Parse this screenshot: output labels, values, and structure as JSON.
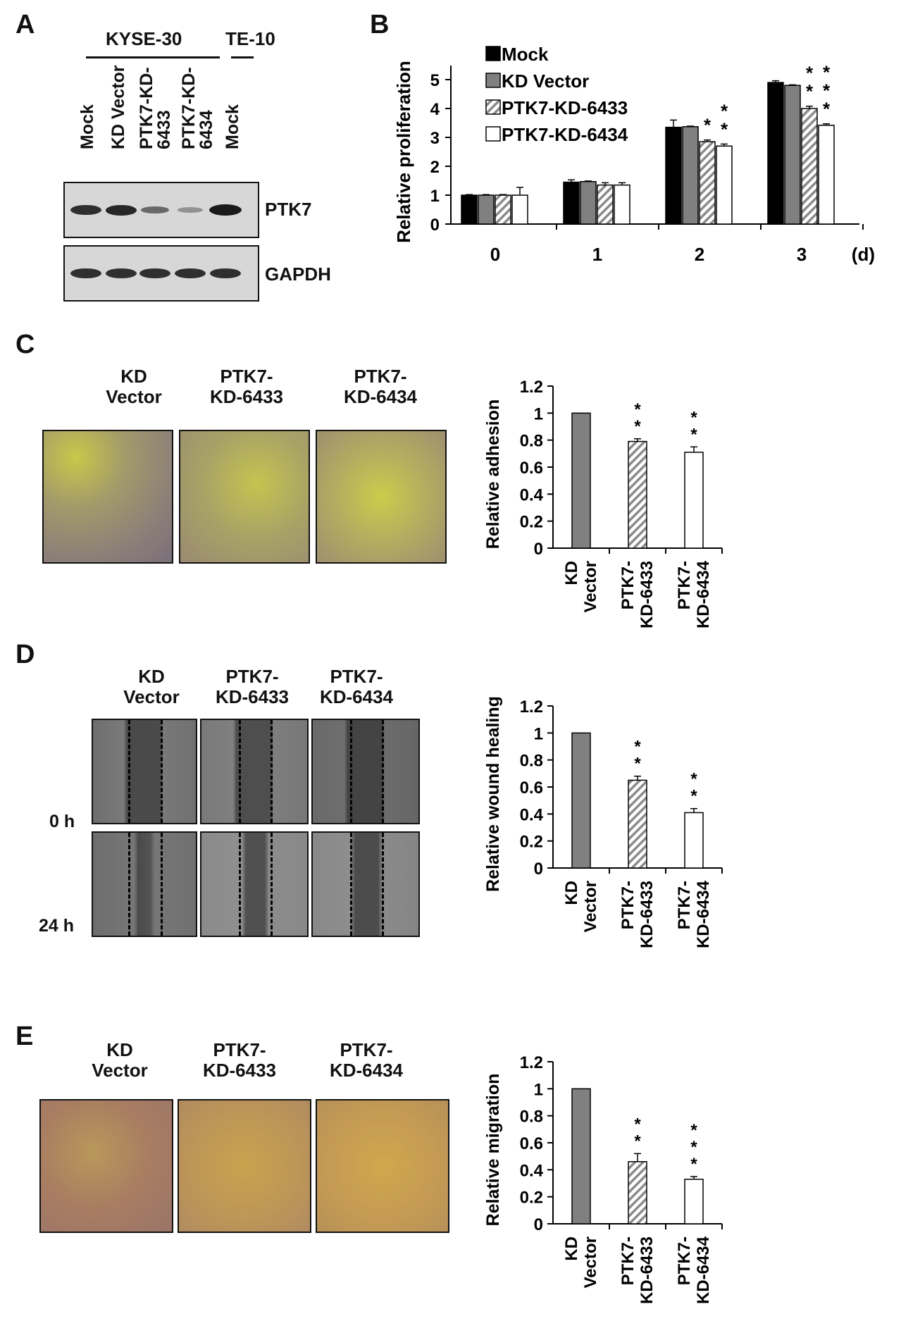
{
  "panels": [
    "A",
    "B",
    "C",
    "D",
    "E"
  ],
  "westernBlot": {
    "group1": "KYSE-30",
    "group2": "TE-10",
    "lanes": [
      [
        "Mock"
      ],
      [
        "KD Vector"
      ],
      [
        "PTK7-KD-",
        "6433"
      ],
      [
        "PTK7-KD-",
        "6434"
      ],
      [
        "Mock"
      ]
    ],
    "proteins": [
      "PTK7",
      "GAPDH"
    ],
    "ptk7_intensity": [
      0.85,
      0.9,
      0.45,
      0.15,
      1.0
    ],
    "gapdh_intensity": [
      0.85,
      0.85,
      0.85,
      0.85,
      0.85
    ]
  },
  "conditions": {
    "kd_vector": [
      "KD",
      "Vector"
    ],
    "kd_6433": [
      "PTK7-",
      "KD-6433"
    ],
    "kd_6434": [
      "PTK7-",
      "KD-6434"
    ]
  },
  "timepoints": [
    "0 h",
    "24 h"
  ],
  "colors": {
    "mock": "#000000",
    "vector": "#808080",
    "kd6433": "hatched",
    "kd6434": "#ffffff"
  },
  "chart_data": [
    {
      "type": "bar",
      "panel": "B",
      "ylabel": "Relative proliferation",
      "ylim": [
        0,
        5
      ],
      "yticks": [
        "0",
        "1",
        "2",
        "3",
        "4",
        "5"
      ],
      "categories": [
        "0",
        "1",
        "2",
        "3"
      ],
      "x_unit": "(d)",
      "series": [
        {
          "name": "Mock",
          "values": [
            1.0,
            1.45,
            3.35,
            4.9
          ],
          "errors": [
            0.02,
            0.08,
            0.25,
            0.06
          ]
        },
        {
          "name": "KD Vector",
          "values": [
            1.0,
            1.47,
            3.37,
            4.8
          ],
          "errors": [
            0.02,
            0.02,
            0.02,
            0.02
          ]
        },
        {
          "name": "PTK7-KD-6433",
          "values": [
            1.0,
            1.35,
            2.85,
            4.0
          ],
          "errors": [
            0.02,
            0.08,
            0.06,
            0.08
          ]
        },
        {
          "name": "PTK7-KD-6434",
          "values": [
            1.0,
            1.35,
            2.7,
            3.42
          ],
          "errors": [
            0.27,
            0.08,
            0.07,
            0.05
          ]
        }
      ],
      "significance": [
        [
          "",
          "",
          "",
          ""
        ],
        [
          "",
          "",
          "",
          ""
        ],
        [
          "",
          "",
          "*",
          "**"
        ],
        [
          "",
          "",
          "**",
          "***"
        ]
      ]
    },
    {
      "type": "bar",
      "panel": "C",
      "ylabel": "Relative adhesion",
      "ylim": [
        0,
        1.2
      ],
      "yticks": [
        "0",
        "0.2",
        "0.4",
        "0.6",
        "0.8",
        "1",
        "1.2"
      ],
      "categories": [
        [
          "KD",
          "Vector"
        ],
        [
          "PTK7-",
          "KD-6433"
        ],
        [
          "PTK7-",
          "KD-6434"
        ]
      ],
      "values": [
        1.0,
        0.79,
        0.71
      ],
      "errors": [
        0,
        0.02,
        0.04
      ],
      "significance": [
        "",
        "**",
        "**"
      ]
    },
    {
      "type": "bar",
      "panel": "D",
      "ylabel": "Relative wound healing",
      "ylim": [
        0,
        1.2
      ],
      "yticks": [
        "0",
        "0.2",
        "0.4",
        "0.6",
        "0.8",
        "1",
        "1.2"
      ],
      "categories": [
        [
          "KD",
          "Vector"
        ],
        [
          "PTK7-",
          "KD-6433"
        ],
        [
          "PTK7-",
          "KD-6434"
        ]
      ],
      "values": [
        1.0,
        0.65,
        0.41
      ],
      "errors": [
        0,
        0.03,
        0.03
      ],
      "significance": [
        "",
        "**",
        "**"
      ]
    },
    {
      "type": "bar",
      "panel": "E",
      "ylabel": "Relative migration",
      "ylim": [
        0,
        1.2
      ],
      "yticks": [
        "0",
        "0.2",
        "0.4",
        "0.6",
        "0.8",
        "1",
        "1.2"
      ],
      "categories": [
        [
          "KD",
          "Vector"
        ],
        [
          "PTK7-",
          "KD-6433"
        ],
        [
          "PTK7-",
          "KD-6434"
        ]
      ],
      "values": [
        1.0,
        0.46,
        0.33
      ],
      "errors": [
        0,
        0.06,
        0.02
      ],
      "significance": [
        "",
        "**",
        "***"
      ]
    }
  ]
}
